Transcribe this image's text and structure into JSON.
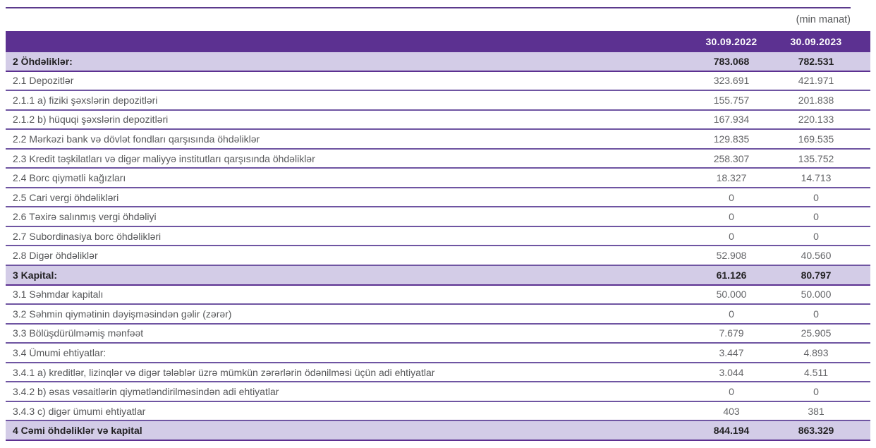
{
  "meta": {
    "unit_label": "(min manat)"
  },
  "colors": {
    "header_bg": "#5c3191",
    "section_bg": "#d3cce7",
    "row_border": "#6f55a2",
    "text_normal": "#565759",
    "text_bold": "#232224"
  },
  "table": {
    "columns": [
      "30.09.2022",
      "30.09.2023"
    ],
    "rows": [
      {
        "label": "2 Öhdəliklər:",
        "v2022": "783.068",
        "v2023": "782.531",
        "style": "section"
      },
      {
        "label": "2.1 Depozitlər",
        "v2022": "323.691",
        "v2023": "421.971",
        "style": "normal"
      },
      {
        "label": "2.1.1 a) fiziki şəxslərin depozitləri",
        "v2022": "155.757",
        "v2023": "201.838",
        "style": "normal"
      },
      {
        "label": "2.1.2 b) hüquqi şəxslərin depozitləri",
        "v2022": "167.934",
        "v2023": "220.133",
        "style": "normal"
      },
      {
        "label": "2.2 Mərkəzi bank və dövlət fondları qarşısında öhdəliklər",
        "v2022": "129.835",
        "v2023": "169.535",
        "style": "normal"
      },
      {
        "label": "2.3 Kredit təşkilatları və digər maliyyə institutları qarşısında öhdəliklər",
        "v2022": "258.307",
        "v2023": "135.752",
        "style": "normal"
      },
      {
        "label": "2.4 Borc qiymətli kağızları",
        "v2022": "18.327",
        "v2023": "14.713",
        "style": "normal"
      },
      {
        "label": "2.5 Cari vergi öhdəlikləri",
        "v2022": "0",
        "v2023": "0",
        "style": "normal"
      },
      {
        "label": "2.6 Təxirə salınmış vergi öhdəliyi",
        "v2022": "0",
        "v2023": "0",
        "style": "normal"
      },
      {
        "label": "2.7 Subordinasiya borc öhdəlikləri",
        "v2022": "0",
        "v2023": "0",
        "style": "normal"
      },
      {
        "label": "2.8 Digər öhdəliklər",
        "v2022": "52.908",
        "v2023": "40.560",
        "style": "normal"
      },
      {
        "label": "3 Kapital:",
        "v2022": "61.126",
        "v2023": "80.797",
        "style": "section"
      },
      {
        "label": "3.1 Səhmdar kapitalı",
        "v2022": "50.000",
        "v2023": "50.000",
        "style": "normal"
      },
      {
        "label": "3.2 Səhmin qiymətinin dəyişməsindən gəlir (zərər)",
        "v2022": "0",
        "v2023": "0",
        "style": "normal"
      },
      {
        "label": "3.3 Bölüşdürülməmiş mənfəət",
        "v2022": "7.679",
        "v2023": "25.905",
        "style": "normal"
      },
      {
        "label": "3.4 Ümumi ehtiyatlar:",
        "v2022": "3.447",
        "v2023": "4.893",
        "style": "normal"
      },
      {
        "label": "3.4.1 a) kreditlər, lizinqlər və digər tələblər üzrə mümkün zərərlərin ödənilməsi üçün adi ehtiyatlar",
        "v2022": "3.044",
        "v2023": "4.511",
        "style": "normal"
      },
      {
        "label": "3.4.2 b) əsas vəsaitlərin qiymətləndirilməsindən adi ehtiyatlar",
        "v2022": "0",
        "v2023": "0",
        "style": "normal"
      },
      {
        "label": "3.4.3 c) digər ümumi ehtiyatlar",
        "v2022": "403",
        "v2023": "381",
        "style": "normal"
      },
      {
        "label": "4 Cəmi öhdəliklər və kapital",
        "v2022": "844.194",
        "v2023": "863.329",
        "style": "section"
      }
    ]
  }
}
